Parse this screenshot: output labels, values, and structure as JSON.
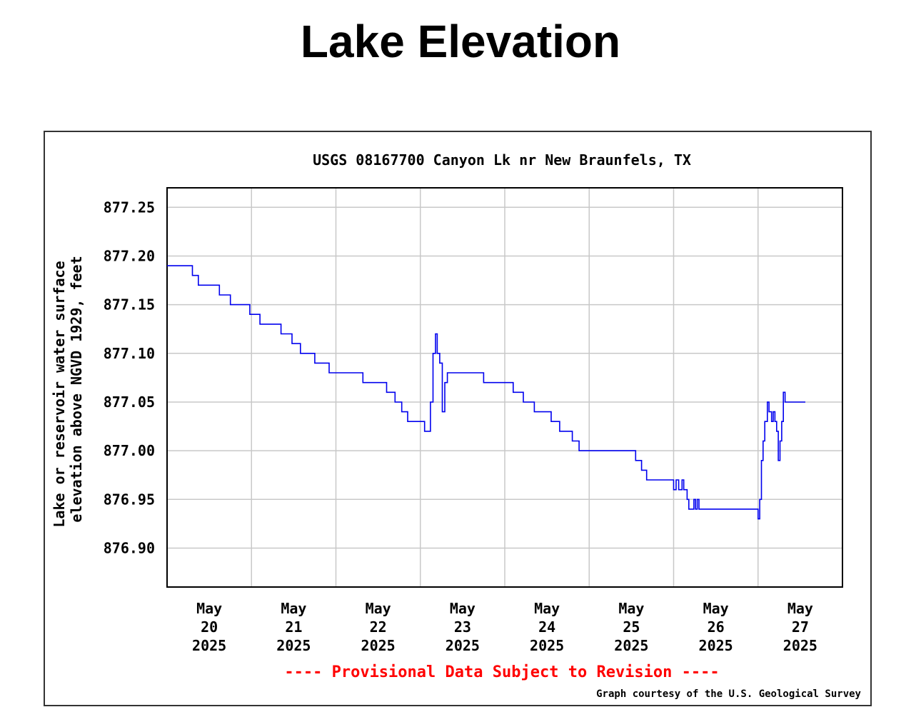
{
  "page": {
    "title": "Lake Elevation"
  },
  "chart_data": {
    "type": "line",
    "title": "USGS 08167700 Canyon Lk nr New Braunfels, TX",
    "xlabel": "",
    "ylabel_line1": "Lake or reservoir water surface",
    "ylabel_line2": "elevation above NGVD 1929, feet",
    "ylim": [
      876.86,
      877.27
    ],
    "yticks": [
      876.9,
      876.95,
      877.0,
      877.05,
      877.1,
      877.15,
      877.2,
      877.25
    ],
    "ytick_labels": [
      "876.90",
      "876.95",
      "877.00",
      "877.05",
      "877.10",
      "877.15",
      "877.20",
      "877.25"
    ],
    "xlim": [
      -0.5,
      7.5
    ],
    "x_units": "days from May 20 2025 00:00",
    "xticks": [
      0,
      1,
      2,
      3,
      4,
      5,
      6,
      7
    ],
    "xtick_labels": [
      {
        "month": "May",
        "day": "20",
        "year": "2025"
      },
      {
        "month": "May",
        "day": "21",
        "year": "2025"
      },
      {
        "month": "May",
        "day": "22",
        "year": "2025"
      },
      {
        "month": "May",
        "day": "23",
        "year": "2025"
      },
      {
        "month": "May",
        "day": "24",
        "year": "2025"
      },
      {
        "month": "May",
        "day": "25",
        "year": "2025"
      },
      {
        "month": "May",
        "day": "26",
        "year": "2025"
      },
      {
        "month": "May",
        "day": "27",
        "year": "2025"
      }
    ],
    "grid": true,
    "series": [
      {
        "color": "#0000ee",
        "step": true,
        "points": [
          [
            -0.5,
            877.19
          ],
          [
            -0.25,
            877.19
          ],
          [
            -0.2,
            877.18
          ],
          [
            -0.13,
            877.17
          ],
          [
            0.12,
            877.16
          ],
          [
            0.25,
            877.15
          ],
          [
            0.48,
            877.14
          ],
          [
            0.6,
            877.13
          ],
          [
            0.85,
            877.12
          ],
          [
            0.98,
            877.11
          ],
          [
            1.08,
            877.1
          ],
          [
            1.25,
            877.09
          ],
          [
            1.42,
            877.08
          ],
          [
            1.82,
            877.07
          ],
          [
            2.1,
            877.06
          ],
          [
            2.2,
            877.05
          ],
          [
            2.28,
            877.04
          ],
          [
            2.35,
            877.03
          ],
          [
            2.55,
            877.02
          ],
          [
            2.62,
            877.05
          ],
          [
            2.65,
            877.1
          ],
          [
            2.68,
            877.12
          ],
          [
            2.7,
            877.1
          ],
          [
            2.73,
            877.09
          ],
          [
            2.76,
            877.04
          ],
          [
            2.79,
            877.07
          ],
          [
            2.82,
            877.08
          ],
          [
            3.25,
            877.07
          ],
          [
            3.6,
            877.06
          ],
          [
            3.72,
            877.05
          ],
          [
            3.85,
            877.04
          ],
          [
            4.05,
            877.03
          ],
          [
            4.15,
            877.02
          ],
          [
            4.3,
            877.01
          ],
          [
            4.38,
            877.0
          ],
          [
            5.05,
            876.99
          ],
          [
            5.12,
            876.98
          ],
          [
            5.18,
            876.97
          ],
          [
            5.5,
            876.96
          ],
          [
            5.53,
            876.97
          ],
          [
            5.56,
            876.96
          ],
          [
            5.6,
            876.97
          ],
          [
            5.62,
            876.96
          ],
          [
            5.66,
            876.95
          ],
          [
            5.68,
            876.94
          ],
          [
            5.74,
            876.95
          ],
          [
            5.76,
            876.94
          ],
          [
            5.78,
            876.95
          ],
          [
            5.8,
            876.94
          ],
          [
            6.5,
            876.93
          ],
          [
            6.52,
            876.95
          ],
          [
            6.54,
            876.99
          ],
          [
            6.56,
            877.01
          ],
          [
            6.58,
            877.03
          ],
          [
            6.61,
            877.05
          ],
          [
            6.63,
            877.04
          ],
          [
            6.66,
            877.03
          ],
          [
            6.68,
            877.04
          ],
          [
            6.7,
            877.03
          ],
          [
            6.72,
            877.02
          ],
          [
            6.74,
            876.99
          ],
          [
            6.76,
            877.01
          ],
          [
            6.78,
            877.03
          ],
          [
            6.8,
            877.06
          ],
          [
            6.82,
            877.05
          ],
          [
            7.06,
            877.05
          ]
        ]
      }
    ]
  },
  "notes": {
    "provisional": "---- Provisional Data Subject to Revision ----",
    "provisional_color": "#ff0000",
    "credit": "Graph courtesy of the U.S. Geological Survey"
  }
}
